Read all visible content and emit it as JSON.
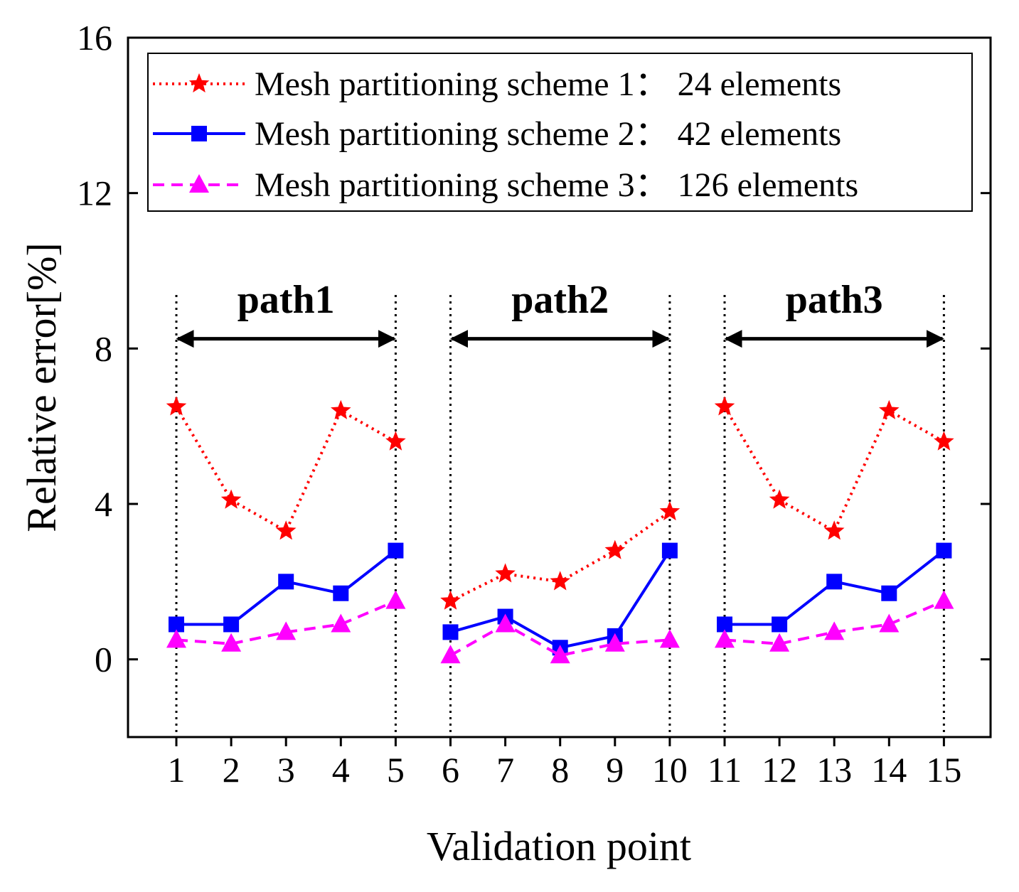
{
  "chart_data": {
    "type": "line",
    "xlabel": "Validation point",
    "ylabel": "Relative error[%]",
    "ylim": [
      -2,
      16
    ],
    "yticks": [
      0,
      4,
      8,
      12,
      16
    ],
    "x": [
      1,
      2,
      3,
      4,
      5,
      6,
      7,
      8,
      9,
      10,
      11,
      12,
      13,
      14,
      15
    ],
    "xtick_labels": [
      "1",
      "2",
      "3",
      "4",
      "5",
      "6",
      "7",
      "8",
      "9",
      "10",
      "11",
      "12",
      "13",
      "14",
      "15"
    ],
    "legend_position": "top",
    "series": [
      {
        "name": "Mesh partitioning scheme 1：  24 elements",
        "color": "#ff0000",
        "marker": "star",
        "line_style": "dotted",
        "values": [
          6.5,
          4.1,
          3.3,
          6.4,
          5.6,
          1.5,
          2.2,
          2.0,
          2.8,
          3.8,
          6.5,
          4.1,
          3.3,
          6.4,
          5.6
        ]
      },
      {
        "name": "Mesh partitioning scheme 2：  42 elements",
        "color": "#0000ff",
        "marker": "square",
        "line_style": "solid",
        "values": [
          0.9,
          0.9,
          2.0,
          1.7,
          2.8,
          0.7,
          1.1,
          0.3,
          0.6,
          2.8,
          0.9,
          0.9,
          2.0,
          1.7,
          2.8
        ]
      },
      {
        "name": "Mesh partitioning scheme 3：  126 elements",
        "color": "#ff00ff",
        "marker": "triangle",
        "line_style": "dashed",
        "values": [
          0.5,
          0.4,
          0.7,
          0.9,
          1.5,
          0.1,
          0.9,
          0.1,
          0.4,
          0.5,
          0.5,
          0.4,
          0.7,
          0.9,
          1.5
        ]
      }
    ],
    "paths": [
      {
        "label": "path1",
        "from": 1,
        "to": 5
      },
      {
        "label": "path2",
        "from": 6,
        "to": 10
      },
      {
        "label": "path3",
        "from": 11,
        "to": 15
      }
    ]
  }
}
